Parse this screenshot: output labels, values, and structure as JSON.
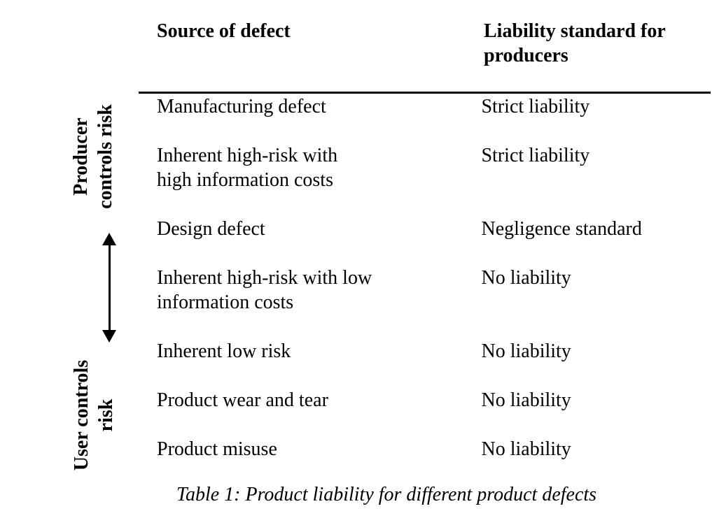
{
  "colors": {
    "background": "#ffffff",
    "text": "#000000",
    "rule": "#000000",
    "arrow": "#000000"
  },
  "risk_axis": {
    "producer_label": "Producer\ncontrols risk",
    "user_label": "User\ncontrols risk",
    "arrow_icon": "double-headed-vertical-arrow"
  },
  "table": {
    "headers": {
      "source": "Source of defect",
      "liability": "Liability standard for\nproducers"
    },
    "rows": [
      {
        "source": "Manufacturing defect",
        "liability": "Strict liability"
      },
      {
        "source": "Inherent high-risk with\nhigh information costs",
        "liability": "Strict liability"
      },
      {
        "source": "Design defect",
        "liability": "Negligence standard"
      },
      {
        "source": "Inherent high-risk with low\ninformation costs",
        "liability": "No liability"
      },
      {
        "source": "Inherent low risk",
        "liability": "No liability"
      },
      {
        "source": "Product wear and tear",
        "liability": "No liability"
      },
      {
        "source": "Product misuse",
        "liability": "No liability"
      }
    ],
    "caption": "Table 1: Product liability for different product defects"
  }
}
